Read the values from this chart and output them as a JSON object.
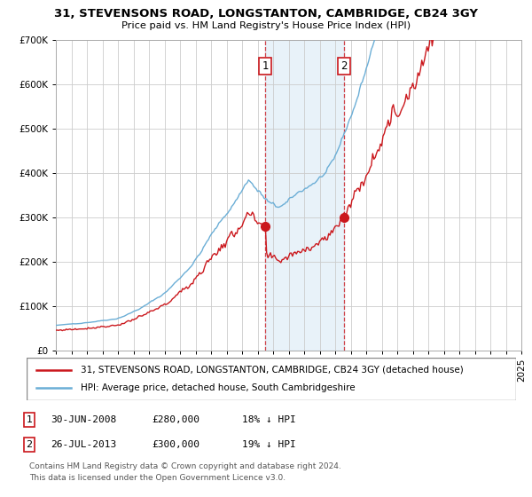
{
  "title": "31, STEVENSONS ROAD, LONGSTANTON, CAMBRIDGE, CB24 3GY",
  "subtitle": "Price paid vs. HM Land Registry's House Price Index (HPI)",
  "legend_line1": "31, STEVENSONS ROAD, LONGSTANTON, CAMBRIDGE, CB24 3GY (detached house)",
  "legend_line2": "HPI: Average price, detached house, South Cambridgeshire",
  "ann1_label": "1",
  "ann1_date": "30-JUN-2008",
  "ann1_price": "£280,000",
  "ann1_hpi": "18% ↓ HPI",
  "ann1_year": 2008.5,
  "ann1_value": 280000,
  "ann2_label": "2",
  "ann2_date": "26-JUL-2013",
  "ann2_price": "£300,000",
  "ann2_hpi": "19% ↓ HPI",
  "ann2_year": 2013.58,
  "ann2_value": 300000,
  "footer_line1": "Contains HM Land Registry data © Crown copyright and database right 2024.",
  "footer_line2": "This data is licensed under the Open Government Licence v3.0.",
  "hpi_color": "#6baed6",
  "price_color": "#cb181d",
  "vline_color": "#cb181d",
  "shade_color": "#d6e8f5",
  "ylim": [
    0,
    700000
  ],
  "yticks": [
    0,
    100000,
    200000,
    300000,
    400000,
    500000,
    600000,
    700000
  ],
  "background_color": "#ffffff",
  "grid_color": "#cccccc",
  "ann_box_color": "#cb181d"
}
